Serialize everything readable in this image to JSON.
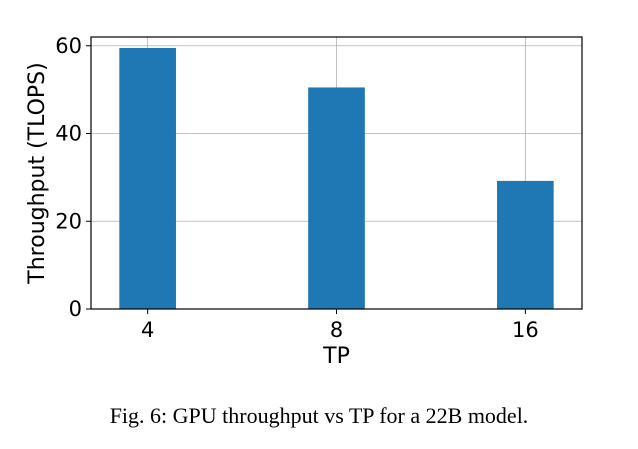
{
  "chart_data": {
    "type": "bar",
    "categories": [
      "4",
      "8",
      "16"
    ],
    "values": [
      59.5,
      50.5,
      29.2
    ],
    "xlabel": "TP",
    "ylabel": "Throughput (TLOPS)",
    "ylim": [
      0,
      62
    ],
    "yticks": [
      0,
      20,
      40,
      60
    ],
    "grid": true,
    "bar_color": "#1f77b4"
  },
  "caption": "Fig. 6: GPU throughput vs TP for a 22B model."
}
